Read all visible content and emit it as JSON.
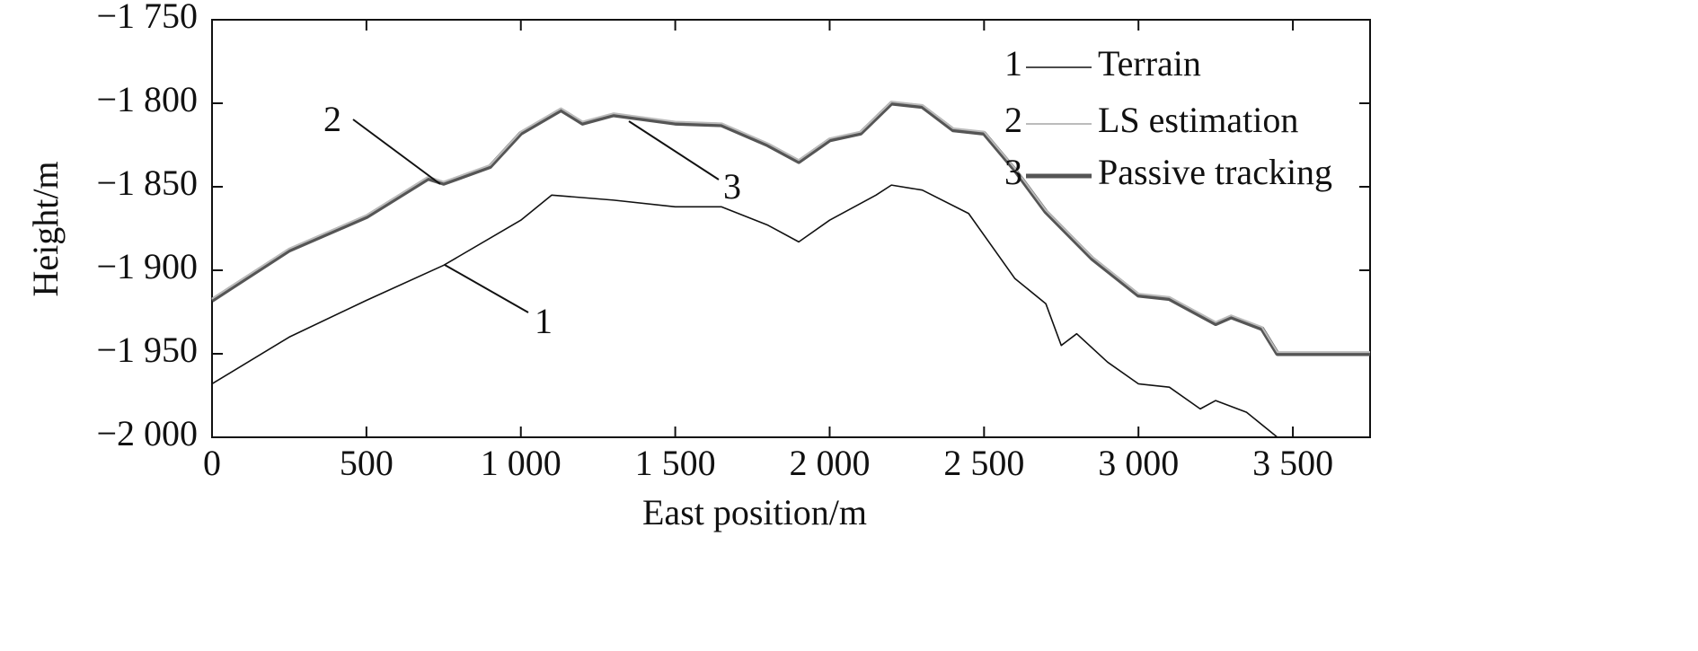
{
  "chart_data": {
    "type": "line",
    "x_label": "East position/m",
    "y_label": "Height/m",
    "xlim": [
      0,
      3750
    ],
    "xticks": [
      0,
      500,
      {
        "value": 1000,
        "label": "1 000"
      },
      {
        "value": 1500,
        "label": "1 500"
      },
      {
        "value": 2000,
        "label": "2 000"
      },
      {
        "value": 2500,
        "label": "2 500"
      },
      {
        "value": 3000,
        "label": "3 000"
      },
      {
        "value": 3500,
        "label": "3 500"
      }
    ],
    "ylim": [
      -2000,
      -1750
    ],
    "yticks": [
      {
        "value": -2000,
        "label": "−2 000"
      },
      {
        "value": -1950,
        "label": "−1 950"
      },
      {
        "value": -1900,
        "label": "−1 900"
      },
      {
        "value": -1850,
        "label": "−1 850"
      },
      {
        "value": -1800,
        "label": "−1 800"
      },
      {
        "value": -1750,
        "label": "−1 750"
      }
    ],
    "grid": false,
    "legend": "upper right",
    "series": [
      {
        "label": "1",
        "name": "Terrain",
        "color": "#111111",
        "x": [
          0,
          250,
          500,
          750,
          1000,
          1100,
          1300,
          1500,
          1650,
          1800,
          1900,
          2000,
          2150,
          2200,
          2300,
          2450,
          2600,
          2700,
          2750,
          2800,
          2900,
          3000,
          3100,
          3200,
          3250,
          3350,
          3450,
          3750
        ],
        "values": [
          -1968,
          -1940,
          -1918,
          -1897,
          -1870,
          -1855,
          -1858,
          -1862,
          -1862,
          -1873,
          -1883,
          -1870,
          -1855,
          -1849,
          -1852,
          -1866,
          -1905,
          -1920,
          -1945,
          -1938,
          -1955,
          -1968,
          -1970,
          -1983,
          -1978,
          -1985,
          -2000,
          -2000
        ]
      },
      {
        "label": "2",
        "name": "LS estimation",
        "color": "#bbbbbb",
        "x": [
          0,
          250,
          500,
          700,
          750,
          900,
          1000,
          1130,
          1200,
          1300,
          1500,
          1650,
          1800,
          1900,
          2000,
          2100,
          2200,
          2300,
          2400,
          2500,
          2600,
          2700,
          2850,
          3000,
          3100,
          3250,
          3300,
          3400,
          3450,
          3750
        ],
        "values": [
          -1917,
          -1887,
          -1867,
          -1844,
          -1847,
          -1837,
          -1817,
          -1803,
          -1811,
          -1806,
          -1811,
          -1812,
          -1824,
          -1834,
          -1821,
          -1817,
          -1799,
          -1801,
          -1815,
          -1817,
          -1839,
          -1864,
          -1892,
          -1914,
          -1916,
          -1931,
          -1927,
          -1934,
          -1949,
          -1949
        ]
      },
      {
        "label": "3",
        "name": "Passive tracking",
        "color": "#555555",
        "x": [
          0,
          250,
          500,
          700,
          750,
          900,
          1000,
          1130,
          1200,
          1300,
          1500,
          1650,
          1800,
          1900,
          2000,
          2100,
          2200,
          2300,
          2400,
          2500,
          2600,
          2700,
          2850,
          3000,
          3100,
          3250,
          3300,
          3400,
          3450,
          3750
        ],
        "values": [
          -1918,
          -1888,
          -1868,
          -1845,
          -1848,
          -1838,
          -1818,
          -1804,
          -1812,
          -1807,
          -1812,
          -1813,
          -1825,
          -1835,
          -1822,
          -1818,
          -1800,
          -1802,
          -1816,
          -1818,
          -1840,
          -1865,
          -1893,
          -1915,
          -1917,
          -1932,
          -1928,
          -1935,
          -1950,
          -1950
        ]
      }
    ]
  }
}
